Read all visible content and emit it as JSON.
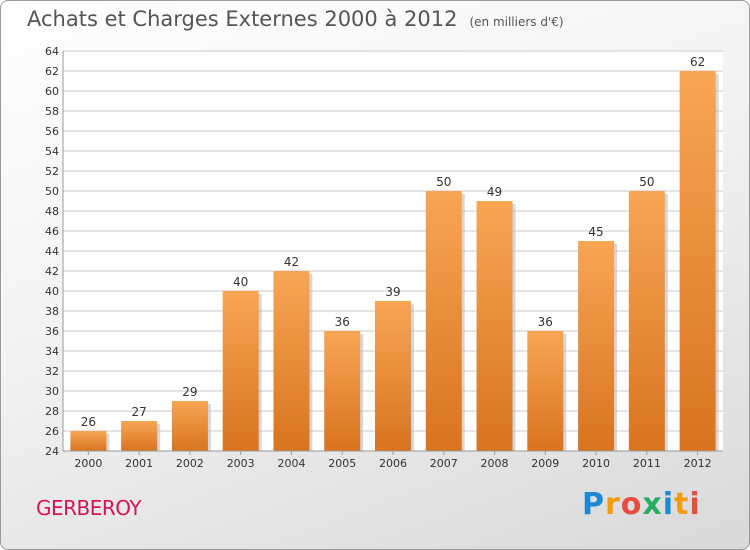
{
  "header": {
    "title": "Achats et Charges Externes 2000 à 2012",
    "unit": "(en milliers d'€)"
  },
  "footer": {
    "commune": "GERBEROY",
    "logo_text": "Proxiti"
  },
  "colors": {
    "bar_top": "#f7a654",
    "bar_bottom": "#d9731f",
    "grid": "#c9c9c9",
    "axis_text": "#333333",
    "title": "#555555",
    "commune": "#d4145a"
  },
  "chart_data": {
    "type": "bar",
    "title": "Achats et Charges Externes 2000 à 2012",
    "categories": [
      "2000",
      "2001",
      "2002",
      "2003",
      "2004",
      "2005",
      "2006",
      "2007",
      "2008",
      "2009",
      "2010",
      "2011",
      "2012"
    ],
    "values": [
      26,
      27,
      29,
      40,
      42,
      36,
      39,
      50,
      49,
      36,
      45,
      50,
      62
    ],
    "ylim": [
      24,
      64
    ],
    "yticks": [
      24,
      26,
      28,
      30,
      32,
      34,
      36,
      38,
      40,
      42,
      44,
      46,
      48,
      50,
      52,
      54,
      56,
      58,
      60,
      62,
      64
    ],
    "grid": true,
    "xlabel": "",
    "ylabel": ""
  }
}
